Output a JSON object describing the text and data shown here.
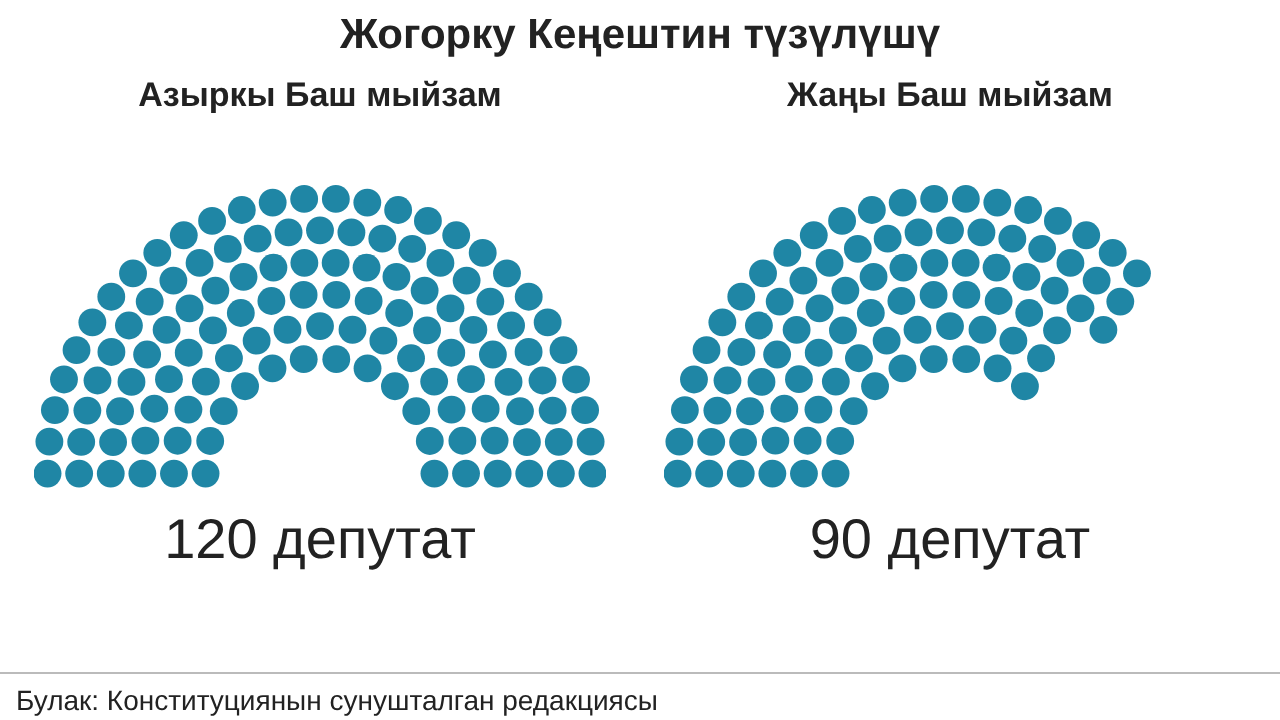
{
  "chart_data": [
    {
      "type": "other",
      "title": "Жогорку Кеңештин түзүлүшү",
      "subtitle": "Азыркы Баш мыйзам",
      "categories": [
        null
      ],
      "values": [
        120
      ],
      "value_labels": [
        "120 депутат"
      ],
      "color": "#1f86a5",
      "annotations": [
        "Булак: Конституциянын сунушталган редакциясы"
      ]
    },
    {
      "type": "other",
      "subtitle": "Жаңы Баш мыйзам",
      "categories": [
        null
      ],
      "values": [
        90
      ],
      "value_labels": [
        "90 депутат"
      ],
      "color": "#1f86a5"
    }
  ]
}
